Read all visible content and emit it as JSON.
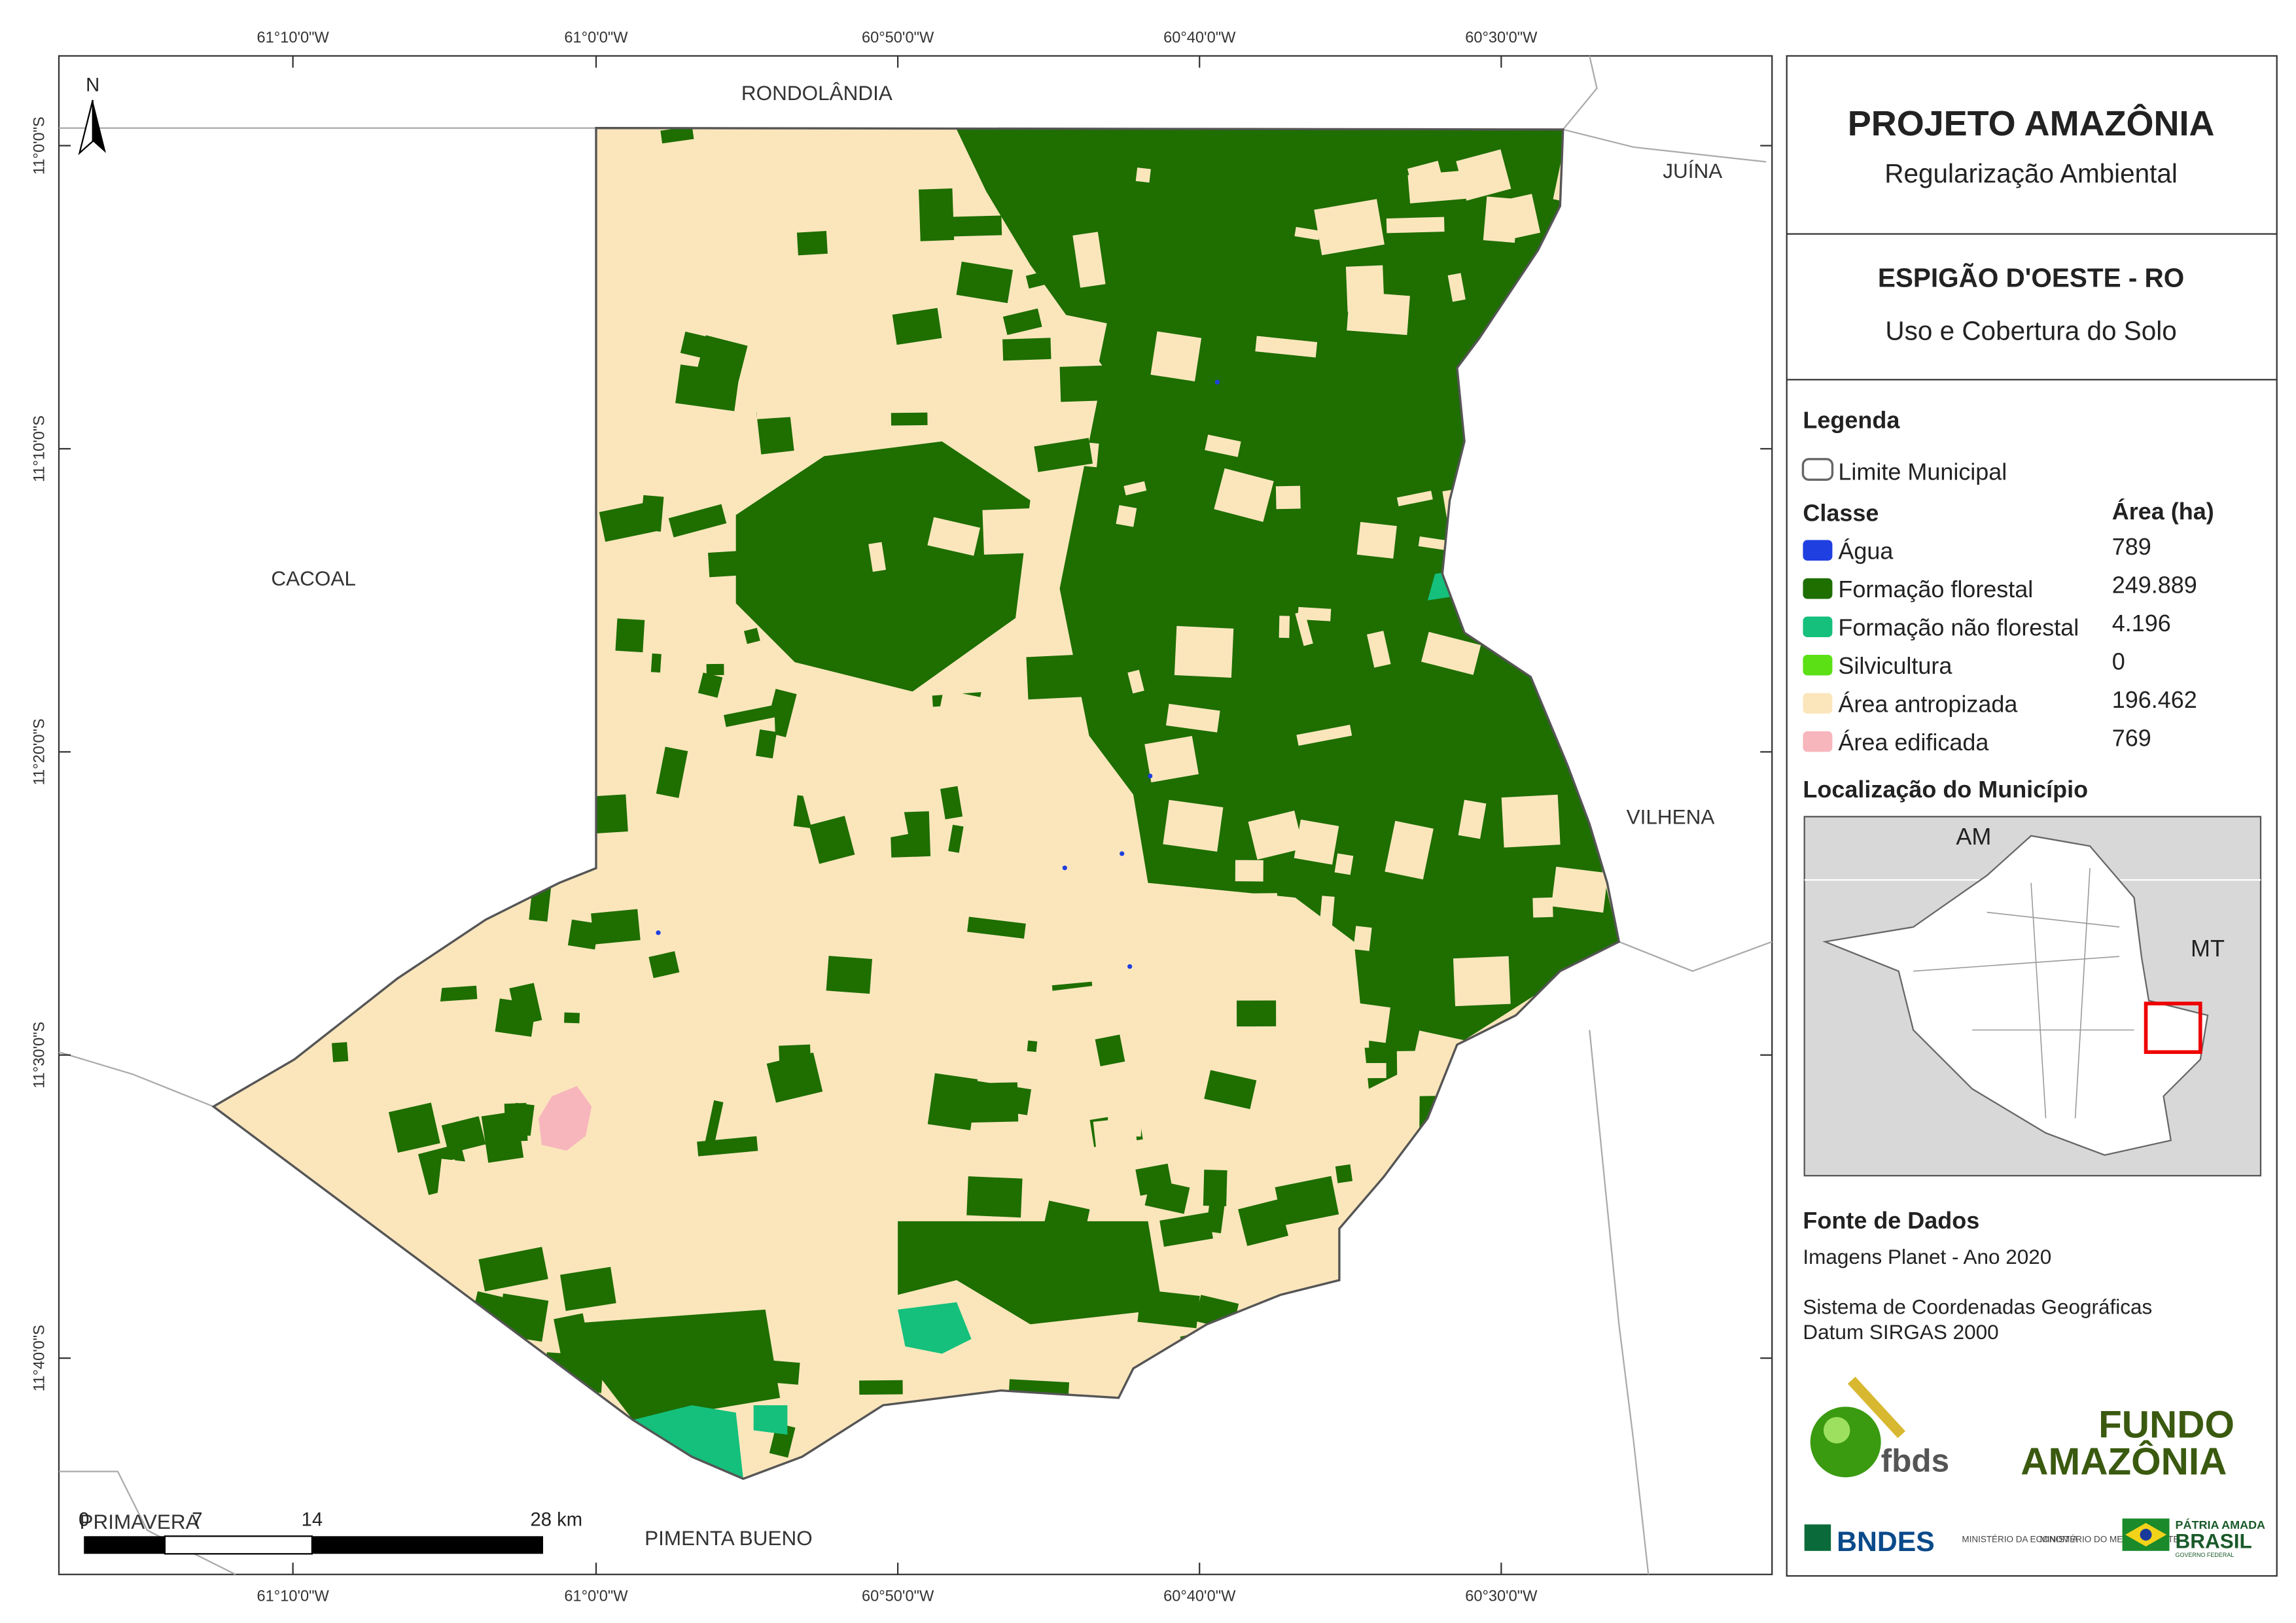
{
  "map": {
    "north": "N",
    "lon_labels": [
      "61°10'0\"W",
      "61°0'0\"W",
      "60°50'0\"W",
      "60°40'0\"W",
      "60°30'0\"W"
    ],
    "lat_labels": [
      "11°0'0\"S",
      "11°10'0\"S",
      "11°20'0\"S",
      "11°30'0\"S",
      "11°40'0\"S"
    ],
    "places": [
      "RONDOLÂNDIA",
      "JUÍNA",
      "CACOAL",
      "VILHENA",
      "PIMENTA BUENO",
      "PRIMAVERA"
    ]
  },
  "scale_bar": {
    "labels": [
      "0",
      "7",
      "14",
      "28 km"
    ]
  },
  "header": {
    "title": "PROJETO AMAZÔNIA",
    "subtitle": "Regularização Ambiental"
  },
  "municipality": {
    "name": "ESPIGÃO D'OESTE - RO",
    "theme": "Uso e Cobertura do Solo"
  },
  "legend": {
    "title": "Legenda",
    "boundary": "Limite Municipal",
    "class_header": "Classe",
    "area_header": "Área (ha)",
    "classes": [
      {
        "name": "Água",
        "area": "789",
        "color": "#1f3fe0"
      },
      {
        "name": "Formação florestal",
        "area": "249.889",
        "color": "#1e6e00"
      },
      {
        "name": "Formação não florestal",
        "area": "4.196",
        "color": "#14c07c"
      },
      {
        "name": "Silvicultura",
        "area": "0",
        "color": "#5ae014"
      },
      {
        "name": "Área antropizada",
        "area": "196.462",
        "color": "#fbe6bc"
      },
      {
        "name": "Área edificada",
        "area": "769",
        "color": "#f7b6bc"
      }
    ]
  },
  "location": {
    "title": "Localização do Município",
    "labels": [
      "AM",
      "MT"
    ]
  },
  "sources": {
    "title": "Fonte de Dados",
    "lines": [
      "Imagens Planet - Ano 2020",
      "Sistema de Coordenadas Geográficas",
      "Datum SIRGAS 2000"
    ]
  },
  "logos": {
    "fbds": "fbds",
    "fundo": "FUNDO",
    "amazonia": "AMAZÔNIA",
    "bndes": "BNDES",
    "min_economia": "MINISTÉRIO DA ECONOMIA",
    "min_ambiente": "MINISTÉRIO DO MEIO AMBIENTE",
    "patria": "PÁTRIA AMADA",
    "brasil": "BRASIL",
    "governo": "GOVERNO FEDERAL"
  }
}
